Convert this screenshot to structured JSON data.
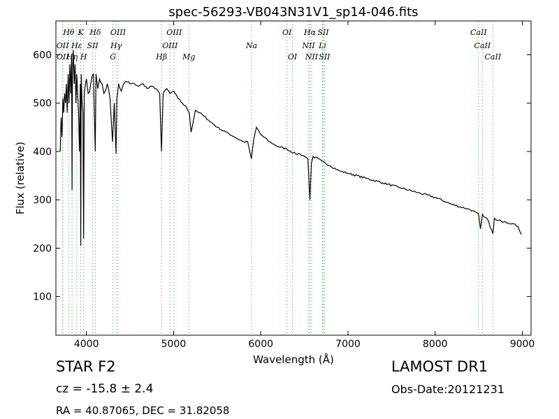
{
  "chart_data": {
    "type": "line",
    "title": "spec-56293-VB043N31V1_sp14-046.fits",
    "xlabel": "Wavelength (Å)",
    "ylabel": "Flux (relative)",
    "xlim": [
      3650,
      9100
    ],
    "ylim": [
      20,
      670
    ],
    "xticks": [
      4000,
      5000,
      6000,
      7000,
      8000,
      9000
    ],
    "yticks": [
      100,
      200,
      300,
      400,
      500,
      600
    ],
    "grid": false,
    "legend": "none",
    "line_color": "#000000",
    "marker_color": "#66bb66",
    "spectrum": {
      "x": [
        3700,
        3710,
        3720,
        3730,
        3740,
        3750,
        3760,
        3770,
        3780,
        3790,
        3800,
        3810,
        3820,
        3830,
        3835,
        3840,
        3850,
        3860,
        3870,
        3880,
        3890,
        3900,
        3910,
        3920,
        3930,
        3935,
        3940,
        3950,
        3960,
        3968,
        3975,
        3990,
        4000,
        4020,
        4050,
        4080,
        4101,
        4110,
        4130,
        4150,
        4180,
        4200,
        4240,
        4270,
        4300,
        4320,
        4340,
        4350,
        4370,
        4400,
        4450,
        4500,
        4550,
        4600,
        4650,
        4700,
        4750,
        4800,
        4840,
        4861,
        4880,
        4920,
        4960,
        5000,
        5050,
        5100,
        5150,
        5180,
        5200,
        5250,
        5300,
        5400,
        5500,
        5600,
        5700,
        5800,
        5850,
        5892,
        5920,
        5950,
        6000,
        6100,
        6200,
        6300,
        6400,
        6450,
        6500,
        6540,
        6563,
        6580,
        6600,
        6700,
        6800,
        6900,
        7000,
        7200,
        7400,
        7600,
        7800,
        8000,
        8200,
        8400,
        8498,
        8520,
        8542,
        8560,
        8600,
        8662,
        8680,
        8700,
        8800,
        8900,
        8950,
        8990
      ],
      "y": [
        400,
        470,
        430,
        510,
        480,
        520,
        500,
        540,
        480,
        560,
        500,
        580,
        520,
        600,
        320,
        560,
        610,
        540,
        580,
        500,
        560,
        520,
        480,
        400,
        540,
        205,
        560,
        500,
        480,
        220,
        520,
        540,
        550,
        520,
        540,
        560,
        400,
        560,
        530,
        550,
        540,
        520,
        540,
        510,
        420,
        500,
        395,
        510,
        540,
        525,
        545,
        540,
        540,
        535,
        540,
        530,
        535,
        530,
        520,
        400,
        520,
        530,
        520,
        525,
        510,
        500,
        490,
        480,
        440,
        485,
        480,
        465,
        450,
        440,
        430,
        420,
        420,
        385,
        425,
        450,
        435,
        420,
        410,
        405,
        395,
        395,
        390,
        385,
        300,
        375,
        390,
        380,
        370,
        360,
        355,
        345,
        335,
        325,
        315,
        305,
        290,
        280,
        270,
        240,
        270,
        265,
        260,
        230,
        262,
        258,
        255,
        250,
        245,
        228
      ]
    },
    "lines": [
      {
        "label": "OII",
        "wl": 3727,
        "row": 1
      },
      {
        "label": "OII",
        "wl": 3729,
        "row": 2
      },
      {
        "label": "Hθ",
        "wl": 3797,
        "row": 0
      },
      {
        "label": "Hη",
        "wl": 3835,
        "row": 2
      },
      {
        "label": "Hε",
        "wl": 3889,
        "row": 1
      },
      {
        "label": "K",
        "wl": 3934,
        "row": 0
      },
      {
        "label": "H",
        "wl": 3968,
        "row": 2
      },
      {
        "label": "SII",
        "wl": 4072,
        "row": 1
      },
      {
        "label": "Hδ",
        "wl": 4102,
        "row": 0
      },
      {
        "label": "G",
        "wl": 4304,
        "row": 2
      },
      {
        "label": "Hγ",
        "wl": 4340,
        "row": 1
      },
      {
        "label": "OIII",
        "wl": 4363,
        "row": 0
      },
      {
        "label": "Hβ",
        "wl": 4861,
        "row": 2
      },
      {
        "label": "OIII",
        "wl": 4959,
        "row": 1
      },
      {
        "label": "OIII",
        "wl": 5007,
        "row": 0
      },
      {
        "label": "Mg",
        "wl": 5175,
        "row": 2
      },
      {
        "label": "Na",
        "wl": 5894,
        "row": 1
      },
      {
        "label": "OI",
        "wl": 6300,
        "row": 0
      },
      {
        "label": "OI",
        "wl": 6363,
        "row": 2
      },
      {
        "label": "NII",
        "wl": 6548,
        "row": 1
      },
      {
        "label": "Hα",
        "wl": 6563,
        "row": 0
      },
      {
        "label": "NII",
        "wl": 6583,
        "row": 2
      },
      {
        "label": "Li",
        "wl": 6708,
        "row": 1
      },
      {
        "label": "SII",
        "wl": 6716,
        "row": 0
      },
      {
        "label": "SII",
        "wl": 6731,
        "row": 2
      },
      {
        "label": "CaII",
        "wl": 8498,
        "row": 0
      },
      {
        "label": "CaII",
        "wl": 8542,
        "row": 1
      },
      {
        "label": "CaII",
        "wl": 8662,
        "row": 2
      }
    ]
  },
  "info": {
    "object_type": "STAR   F2",
    "catalog": "LAMOST DR1",
    "cz": "cz = -15.8 ± 2.4",
    "obs_date": "Obs-Date:20121231",
    "ra_dec": "RA = 40.87065, DEC = 31.82058"
  }
}
